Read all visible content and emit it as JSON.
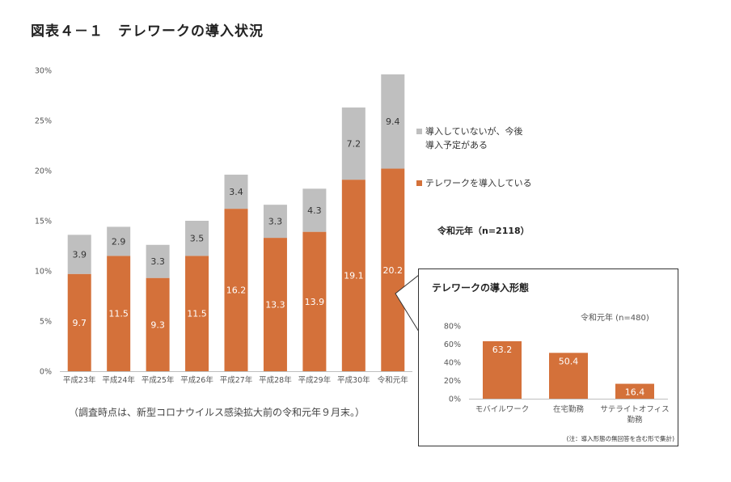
{
  "title": "図表４－１　テレワークの導入状況",
  "note": "（調査時点は、新型コロナウイルス感染拡大前の令和元年９月末。）",
  "sample_label": "令和元年（n=2118）",
  "colors": {
    "introduced": "#d4713a",
    "planned": "#bfbfbf",
    "axis": "#bfbfbf"
  },
  "chart_data": [
    {
      "type": "bar",
      "stacked": true,
      "categories": [
        "平成23年",
        "平成24年",
        "平成25年",
        "平成26年",
        "平成27年",
        "平成28年",
        "平成29年",
        "平成30年",
        "令和元年"
      ],
      "series": [
        {
          "name": "テレワークを導入している",
          "values": [
            9.7,
            11.5,
            9.3,
            11.5,
            16.2,
            13.3,
            13.9,
            19.1,
            20.2
          ]
        },
        {
          "name": "導入していないが、今後導入予定がある",
          "name_lines": [
            "導入していないが、今後",
            "導入予定がある"
          ],
          "values": [
            3.9,
            2.9,
            3.3,
            3.5,
            3.4,
            3.3,
            4.3,
            7.2,
            9.4
          ]
        }
      ],
      "yticks": [
        "0%",
        "5%",
        "10%",
        "15%",
        "20%",
        "25%",
        "30%"
      ],
      "ylim": [
        0,
        30
      ],
      "legend_position": "right"
    },
    {
      "type": "bar",
      "title": "テレワークの導入形態",
      "sample_label": "令和元年 (n=480)",
      "categories": [
        "モバイルワーク",
        "在宅勤務",
        "サテライトオフィス勤務"
      ],
      "category_lines": [
        [
          "モバイルワーク"
        ],
        [
          "在宅勤務"
        ],
        [
          "サテライトオフィス",
          "勤務"
        ]
      ],
      "values": [
        63.2,
        50.4,
        16.4
      ],
      "yticks": [
        "0%",
        "20%",
        "40%",
        "60%",
        "80%"
      ],
      "ylim": [
        0,
        80
      ],
      "footnote": "(注：導入形態の無回答を含む形で集計)"
    }
  ]
}
